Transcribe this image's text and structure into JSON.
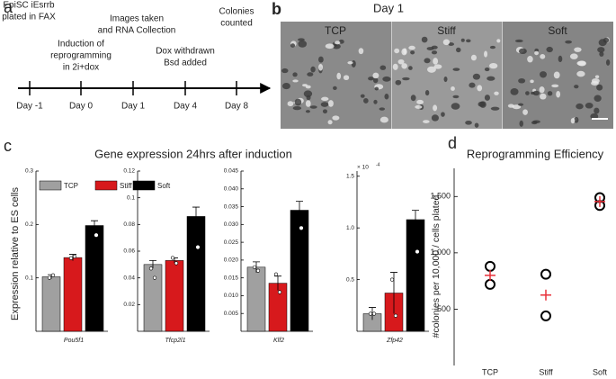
{
  "panel_labels": [
    "a",
    "b",
    "c",
    "d"
  ],
  "timeline": {
    "days": [
      "Day -1",
      "Day 0",
      "Day 1",
      "Day 4",
      "Day 8"
    ],
    "events": [
      [
        "EpiSC iEsrrb",
        "plated in FAX"
      ],
      [
        "Induction of",
        "reprogramming",
        "in 2i+dox"
      ],
      [
        "Images taken",
        "and RNA Collection"
      ],
      [
        "Dox withdrawn",
        "Bsd added"
      ],
      [
        "Colonies",
        "counted"
      ]
    ]
  },
  "micrographs": {
    "title": "Day 1",
    "labels": [
      "TCP",
      "Stiff",
      "Soft"
    ]
  },
  "chart_data": [
    {
      "type": "bar",
      "title": "Gene expression 24hrs after induction",
      "ylabel": "Expression relative to ES cells",
      "legend": [
        {
          "name": "TCP",
          "color": "#a0a0a0"
        },
        {
          "name": "Stiff",
          "color": "#d7191c"
        },
        {
          "name": "Soft",
          "color": "#000000"
        }
      ],
      "subplots": [
        {
          "xlabel": "Pou5f1",
          "ylim": [
            0,
            0.3
          ],
          "yticks": [
            0.1,
            0.2,
            0.3
          ],
          "values": [
            0.102,
            0.138,
            0.198
          ],
          "errors": [
            0.004,
            0.006,
            0.009
          ],
          "points": [
            [
              0.1,
              0.105
            ],
            [
              0.137,
              0.14
            ],
            [
              0.22,
              0.18
            ]
          ]
        },
        {
          "xlabel": "Tfcp2l1",
          "ylim": [
            0,
            0.12
          ],
          "yticks": [
            0.02,
            0.04,
            0.06,
            0.08,
            0.1,
            0.12
          ],
          "values": [
            0.05,
            0.053,
            0.086
          ],
          "errors": [
            0.003,
            0.002,
            0.007
          ],
          "points": [
            [
              0.047,
              0.04
            ],
            [
              0.055,
              0.051
            ],
            [
              0.108,
              0.063
            ]
          ]
        },
        {
          "xlabel": "Klf2",
          "ylim": [
            0,
            0.045
          ],
          "yticks": [
            0.005,
            {
              "value": 0.01,
              "label": "0.010"
            },
            0.015,
            {
              "value": 0.02,
              "label": "0.020"
            },
            0.025,
            {
              "value": 0.03,
              "label": "0.030"
            },
            0.035,
            {
              "value": 0.04,
              "label": "0.040"
            },
            0.045
          ],
          "values": [
            0.018,
            0.0135,
            0.034
          ],
          "errors": [
            0.0015,
            0.002,
            0.0025
          ],
          "points": [
            [
              0.018,
              0.017
            ],
            [
              0.016,
              0.011
            ],
            [
              0.04,
              0.029
            ]
          ]
        },
        {
          "xlabel": "Zfp42",
          "multiplier": {
            "base": "× 10",
            "exponent": "-4"
          },
          "ylim": [
            0,
            1.55
          ],
          "yticks": [
            0.5,
            {
              "value": 1,
              "label": "1.0"
            },
            1.5
          ],
          "values": [
            0.17,
            0.37,
            1.08
          ],
          "errors": [
            0.06,
            0.2,
            0.09
          ],
          "points": [
            [
              0.17,
              0.17
            ],
            [
              0.5,
              0.15
            ],
            [
              1.45,
              0.77
            ]
          ]
        }
      ]
    },
    {
      "type": "scatter",
      "title": "Reprogramming Efficiency",
      "ylabel": "#colonies per 10,000 / cells plated",
      "categories": [
        "TCP",
        "Stiff",
        "Soft"
      ],
      "values": [
        [
          880,
          720
        ],
        [
          810,
          440
        ],
        [
          1490,
          1420
        ]
      ],
      "color": "#000000",
      "means": [
        800,
        625,
        1455
      ],
      "mean_color": "#e8303a",
      "ylim": [
        0,
        1750
      ],
      "yticks": [
        500,
        {
          "value": 1000,
          "label": "1,000"
        },
        {
          "value": 1500,
          "label": "1,500"
        }
      ]
    }
  ]
}
